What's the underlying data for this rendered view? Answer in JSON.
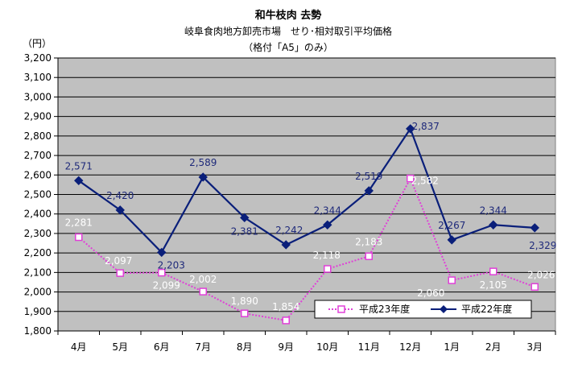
{
  "chart_data": {
    "type": "line",
    "title": "和牛枝肉  去勢",
    "subtitle": "岐阜食肉地方卸売市場　せり･相対取引平均価格",
    "subtitle2": "（格付「A5」のみ）",
    "ylabel": "（円）",
    "xlabel": "",
    "categories": [
      "4月",
      "5月",
      "6月",
      "7月",
      "8月",
      "9月",
      "10月",
      "11月",
      "12月",
      "1月",
      "2月",
      "3月"
    ],
    "ylim": [
      1800,
      3200
    ],
    "y_ticks": [
      1800,
      1900,
      2000,
      2100,
      2200,
      2300,
      2400,
      2500,
      2600,
      2700,
      2800,
      2900,
      3000,
      3100,
      3200
    ],
    "y_tick_labels": [
      "1,800",
      "1,900",
      "2,000",
      "2,100",
      "2,200",
      "2,300",
      "2,400",
      "2,500",
      "2,600",
      "2,700",
      "2,800",
      "2,900",
      "3,000",
      "3,100",
      "3,200"
    ],
    "grid": true,
    "legend_position": "bottom-right",
    "series": [
      {
        "name": "平成23年度",
        "color": "#e040d8",
        "marker": "open-square",
        "line_style": "dotted",
        "values": [
          2281,
          2097,
          2099,
          2002,
          1890,
          1854,
          2118,
          2183,
          2582,
          2060,
          2105,
          2026
        ],
        "labels": [
          "2,281",
          "2,097",
          "2,099",
          "2,002",
          "1,890",
          "1,854",
          "2,118",
          "2,183",
          "2,582",
          "2,060",
          "2,105",
          "2,026"
        ]
      },
      {
        "name": "平成22年度",
        "color": "#0a1f7a",
        "marker": "diamond",
        "line_style": "solid",
        "values": [
          2571,
          2420,
          2203,
          2589,
          2381,
          2242,
          2344,
          2519,
          2837,
          2267,
          2344,
          2329
        ],
        "labels": [
          "2,571",
          "2,420",
          "2,203",
          "2,589",
          "2,381",
          "2,242",
          "2,344",
          "2,519",
          "2,837",
          "2,267",
          "2,344",
          "2,329"
        ]
      }
    ]
  },
  "colors": {
    "plot_background": "#c0c0c0",
    "gridline": "#000000"
  }
}
